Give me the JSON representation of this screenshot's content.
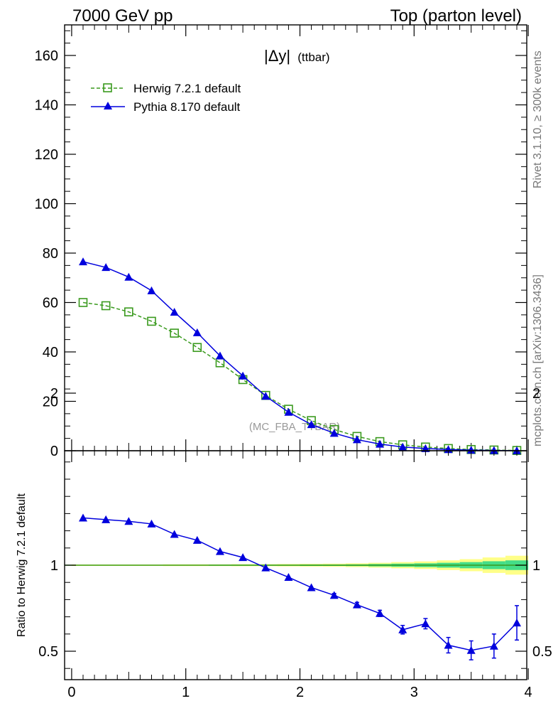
{
  "header": {
    "left": "7000 GeV pp",
    "right": "Top (parton level)"
  },
  "side_labels": {
    "rivet": "Rivet 3.1.10, ≥ 300k events",
    "mcplots": "mcplots.cern.ch [arXiv:1306.3436]"
  },
  "colors": {
    "herwig": "#3a9a1e",
    "pythia": "#0000dd",
    "band_outer": "#ffff88",
    "band_inner": "#44dd88"
  },
  "chart_data": [
    {
      "type": "line",
      "title": "|Δy| (ttbar)",
      "title_main": "|Δy|",
      "title_suffix": "(ttbar)",
      "watermark": "(MC_FBA_TTBAR)",
      "legend_position": "top-left",
      "xlim": [
        0,
        4
      ],
      "ylim": [
        0,
        172
      ],
      "x_ticks": [
        "0",
        "1",
        "2",
        "3",
        "4"
      ],
      "y_ticks": [
        "0",
        "20",
        "40",
        "60",
        "80",
        "100",
        "120",
        "140",
        "160"
      ],
      "x": [
        0.1,
        0.3,
        0.5,
        0.7,
        0.9,
        1.1,
        1.3,
        1.5,
        1.7,
        1.9,
        2.1,
        2.3,
        2.5,
        2.7,
        2.9,
        3.1,
        3.3,
        3.5,
        3.7,
        3.9
      ],
      "series": [
        {
          "name": "Herwig 7.2.1 default",
          "values": [
            60.0,
            58.7,
            56.2,
            52.4,
            47.6,
            41.8,
            35.6,
            28.8,
            22.4,
            16.8,
            12.2,
            8.6,
            5.8,
            3.7,
            2.4,
            1.5,
            0.9,
            0.5,
            0.3,
            0.1
          ]
        },
        {
          "name": "Pythia 8.170 default",
          "values": [
            76.5,
            74.2,
            70.3,
            64.8,
            56.1,
            47.8,
            38.4,
            30.3,
            22.1,
            15.6,
            10.6,
            7.1,
            4.5,
            2.7,
            1.5,
            0.9,
            0.5,
            0.25,
            0.1,
            0.05
          ]
        }
      ]
    },
    {
      "type": "line",
      "ylabel": "Ratio to Herwig 7.2.1 default",
      "xlim": [
        0,
        4
      ],
      "ylim": [
        0.35,
        2.3
      ],
      "x_ticks": [
        "0",
        "1",
        "2",
        "3",
        "4"
      ],
      "y_ticks": [
        "0.5",
        "1",
        "2"
      ],
      "reference": 1.0,
      "x": [
        0.1,
        0.3,
        0.5,
        0.7,
        0.9,
        1.1,
        1.3,
        1.5,
        1.7,
        1.9,
        2.1,
        2.3,
        2.5,
        2.7,
        2.9,
        3.1,
        3.3,
        3.5,
        3.7,
        3.9
      ],
      "band_outer": [
        0.004,
        0.004,
        0.004,
        0.004,
        0.005,
        0.005,
        0.005,
        0.006,
        0.006,
        0.007,
        0.008,
        0.009,
        0.011,
        0.014,
        0.018,
        0.022,
        0.028,
        0.035,
        0.045,
        0.055
      ],
      "band_inner": [
        0.002,
        0.002,
        0.002,
        0.002,
        0.002,
        0.002,
        0.003,
        0.003,
        0.003,
        0.003,
        0.004,
        0.004,
        0.005,
        0.007,
        0.009,
        0.011,
        0.014,
        0.018,
        0.023,
        0.028
      ],
      "series": [
        {
          "name": "Pythia 8.170 default",
          "values": [
            1.275,
            1.265,
            1.255,
            1.24,
            1.18,
            1.145,
            1.08,
            1.045,
            0.985,
            0.93,
            0.87,
            0.825,
            0.77,
            0.72,
            0.625,
            0.66,
            0.535,
            0.505,
            0.53,
            0.665
          ],
          "errors": [
            0.003,
            0.003,
            0.003,
            0.004,
            0.004,
            0.005,
            0.005,
            0.006,
            0.007,
            0.008,
            0.009,
            0.011,
            0.014,
            0.018,
            0.025,
            0.03,
            0.045,
            0.055,
            0.07,
            0.1
          ]
        }
      ]
    }
  ]
}
